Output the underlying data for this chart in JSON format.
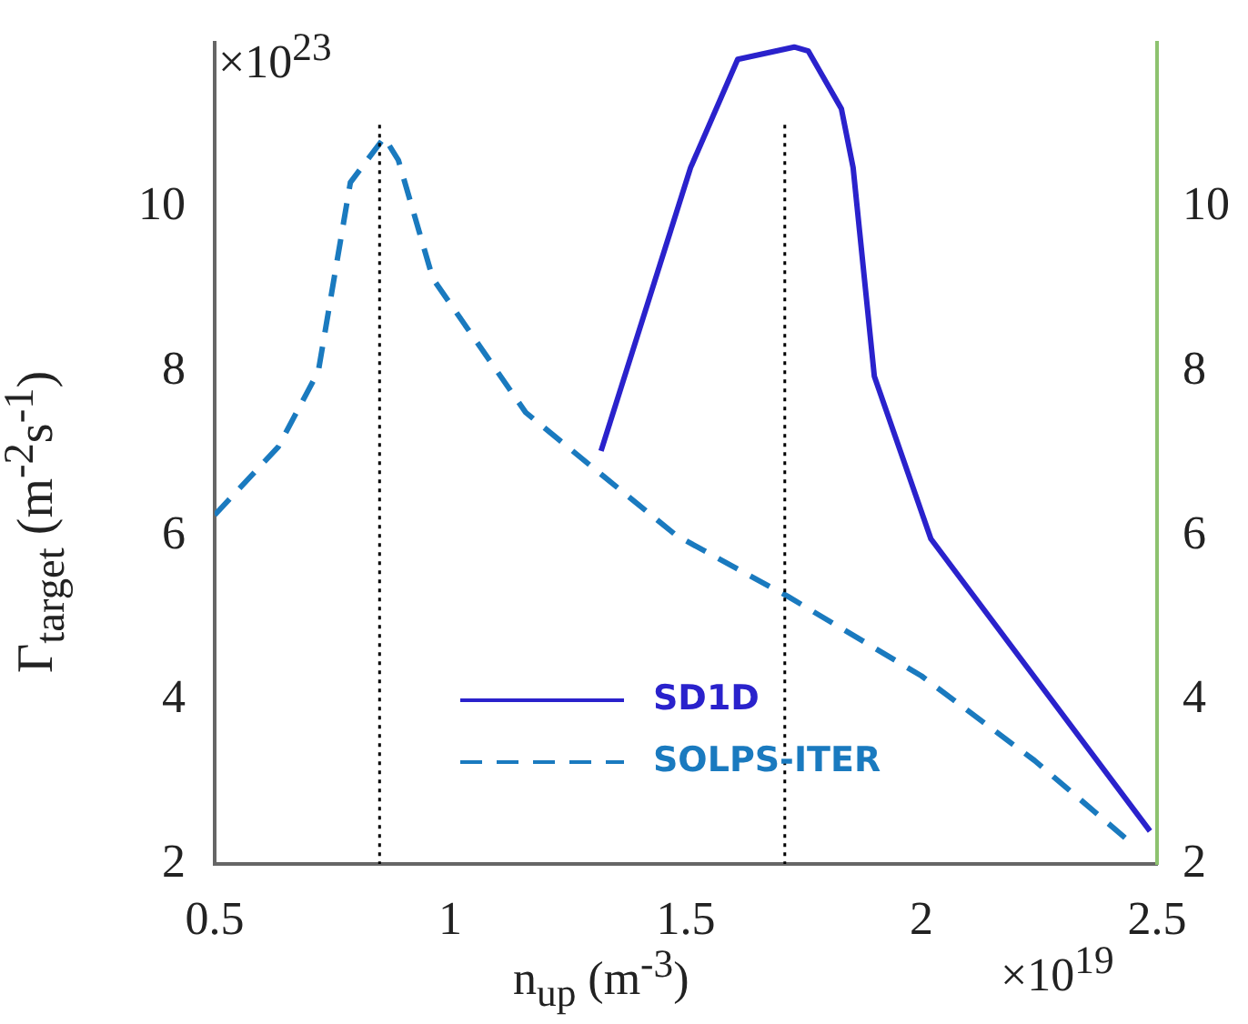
{
  "chart_data": {
    "type": "line",
    "xlabel": "n$_{up}$ (m$^{-3}$)",
    "ylabel": "Γ$_{target}$ (m$^{-2}$s$^{-1}$)",
    "annotations": [
      "×10$^{23}$",
      "×10$^{19}$"
    ],
    "series": [
      {
        "name": "SD1D",
        "color": "#2a22cc",
        "line_style": "solid",
        "x": [
          1.32,
          1.51,
          1.61,
          1.73,
          1.76,
          1.83,
          1.855,
          1.9,
          2.02,
          2.485
        ],
        "values": [
          7.03,
          10.48,
          11.8,
          11.95,
          11.9,
          11.2,
          10.48,
          7.94,
          5.96,
          2.4
        ]
      },
      {
        "name": "SOLPS-ITER",
        "color": "#1a7abf",
        "line_style": "dashed",
        "x": [
          0.5,
          0.635,
          0.72,
          0.788,
          0.86,
          0.89,
          0.963,
          1.16,
          1.33,
          1.48,
          1.716,
          2.0,
          2.24,
          2.44
        ],
        "values": [
          6.25,
          7.08,
          8.0,
          10.3,
          10.85,
          10.57,
          9.13,
          7.5,
          6.7,
          6.0,
          5.26,
          4.29,
          3.26,
          2.28
        ]
      }
    ],
    "xlim": [
      0.5,
      2.5
    ],
    "xticks": [
      0.5,
      1,
      1.5,
      2,
      2.5
    ],
    "ylim": [
      2,
      12
    ],
    "yticks": [
      2,
      4,
      6,
      8,
      10
    ],
    "y2lim": [
      2,
      12
    ],
    "y2ticks": [
      2,
      4,
      6,
      8,
      10
    ],
    "ref_lines": [
      {
        "axis": "x",
        "value": 0.85,
        "color": "#000000",
        "line_style": "dotted"
      },
      {
        "axis": "x",
        "value": 1.71,
        "color": "#000000",
        "line_style": "dotted"
      }
    ],
    "grid": false,
    "legend": "bottom left",
    "marker": "none"
  }
}
